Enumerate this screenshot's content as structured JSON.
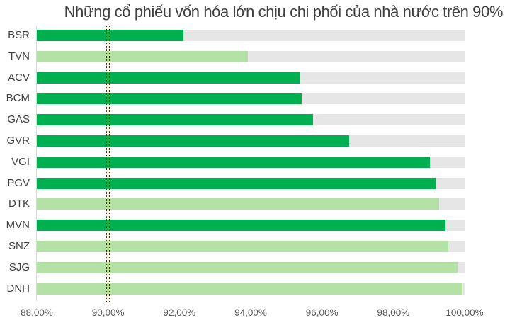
{
  "title": "Những cổ phiếu vốn hóa lớn chịu chi phối của nhà nước trên 90%",
  "colors": {
    "dark_green": "#00b050",
    "light_green": "#b4e2a6",
    "background_bar": "#e6e6e6",
    "marker": "#c00000"
  },
  "chart_data": {
    "type": "bar",
    "orientation": "horizontal",
    "title": "Những cổ phiếu vốn hóa lớn chịu chi phối của nhà nước trên 90%",
    "xlabel": "",
    "ylabel": "",
    "xlim": [
      88,
      100
    ],
    "x_ticks": [
      "88,00%",
      "90,00%",
      "92,00%",
      "94,00%",
      "96,00%",
      "98,00%",
      "100,00%"
    ],
    "grid": false,
    "reference_line": {
      "value": 90,
      "style": "red dotted"
    },
    "categories": [
      "BSR",
      "TVN",
      "ACV",
      "BCM",
      "GAS",
      "GVR",
      "VGI",
      "PGV",
      "DTK",
      "MVN",
      "SNZ",
      "SJG",
      "DNH"
    ],
    "values": [
      92.11,
      93.92,
      95.39,
      95.43,
      95.75,
      96.76,
      99.03,
      99.19,
      99.29,
      99.46,
      99.54,
      99.8,
      99.94
    ],
    "bar_colors": [
      "dark",
      "light",
      "dark",
      "dark",
      "dark",
      "dark",
      "dark",
      "dark",
      "light",
      "dark",
      "light",
      "light",
      "light"
    ],
    "background_bar_value": 100
  }
}
